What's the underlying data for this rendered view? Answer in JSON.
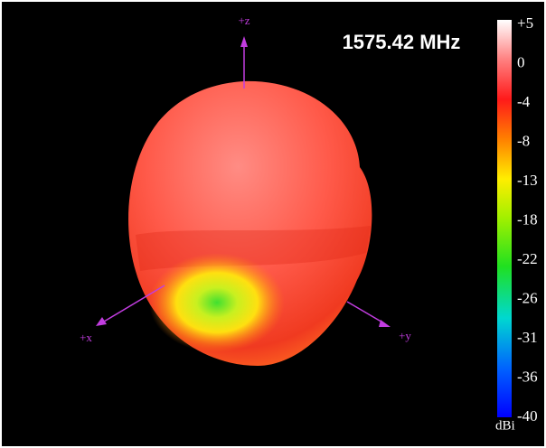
{
  "frequency_label": "1575.42 MHz",
  "axes": {
    "z": "+z",
    "x": "+x",
    "y": "+y"
  },
  "colorbar": {
    "ticks": [
      "+5",
      "0",
      "-4",
      "-8",
      "-13",
      "-18",
      "-22",
      "-26",
      "-31",
      "-36",
      "-40"
    ],
    "unit": "dBi"
  }
}
